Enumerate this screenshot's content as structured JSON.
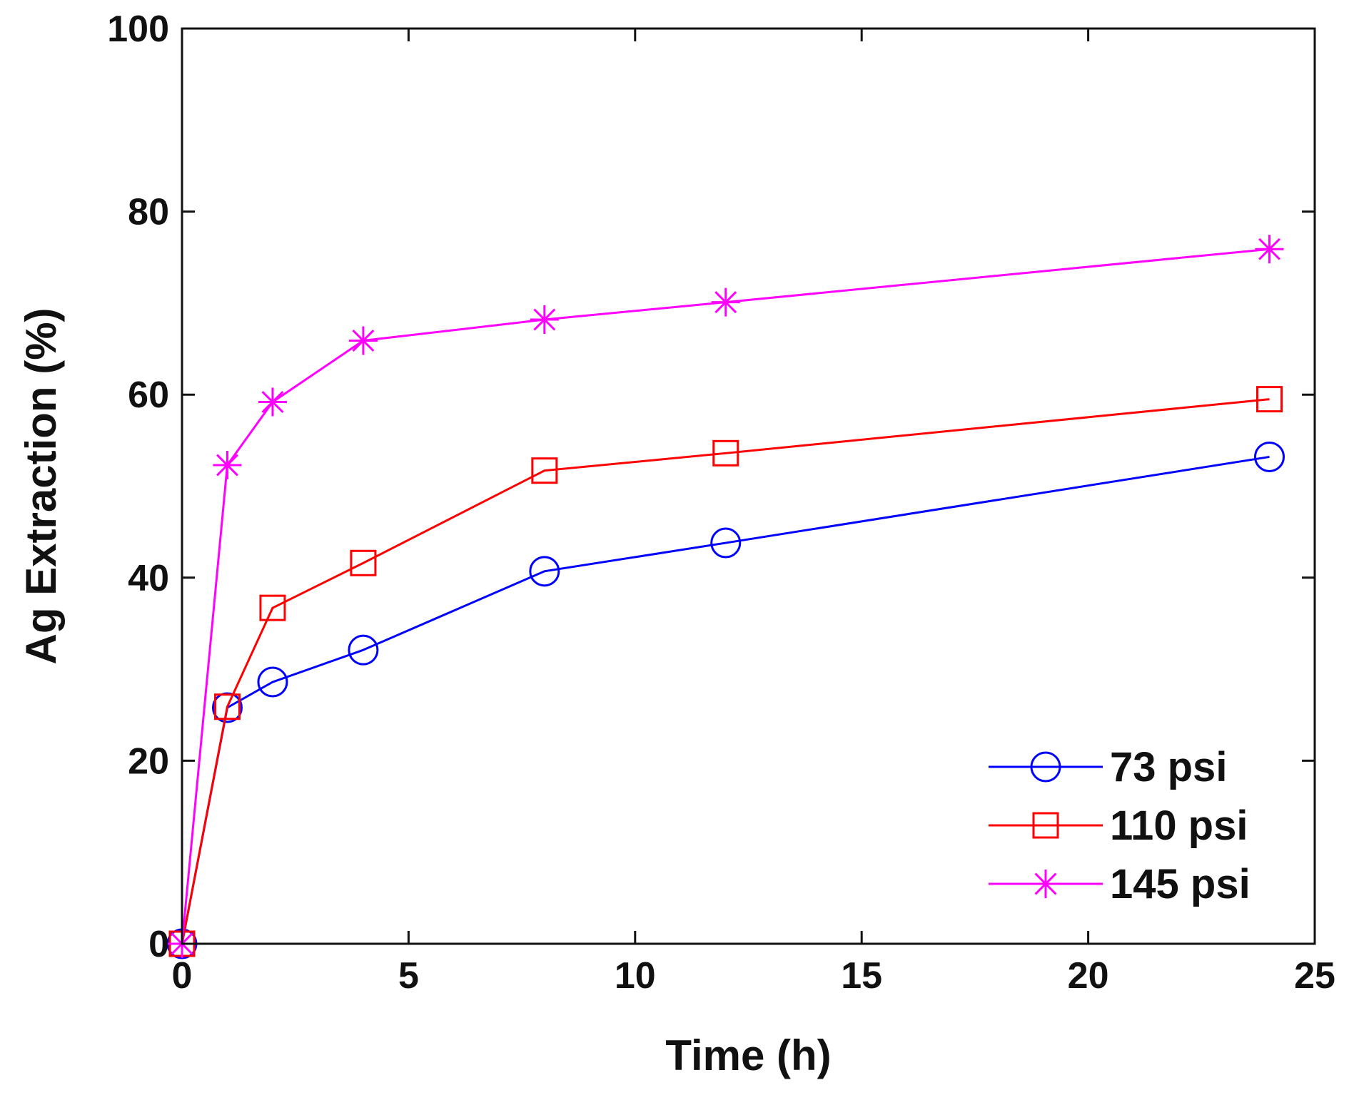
{
  "chart_data": {
    "type": "line",
    "title": "",
    "xlabel": "Time (h)",
    "ylabel": "Ag Extraction (%)",
    "xlim": [
      0,
      25
    ],
    "ylim": [
      0,
      100
    ],
    "xticks": [
      0,
      5,
      10,
      15,
      20,
      25
    ],
    "yticks": [
      0,
      20,
      40,
      60,
      80,
      100
    ],
    "grid": false,
    "legend_position": "bottom-right",
    "series": [
      {
        "name": "73 psi",
        "color": "#0000ff",
        "marker": "circle",
        "x": [
          0,
          1,
          2,
          4,
          8,
          12,
          24
        ],
        "y": [
          0,
          25.8,
          28.6,
          32.1,
          40.7,
          43.8,
          53.2
        ]
      },
      {
        "name": "110 psi",
        "color": "#ff0000",
        "marker": "square",
        "x": [
          0,
          1,
          2,
          4,
          8,
          12,
          24
        ],
        "y": [
          0,
          25.9,
          36.7,
          41.6,
          51.7,
          53.6,
          59.5
        ]
      },
      {
        "name": "145 psi",
        "color": "#ff00ff",
        "marker": "asterisk",
        "x": [
          0,
          1,
          2,
          4,
          8,
          12,
          24
        ],
        "y": [
          0,
          52.3,
          59.2,
          65.9,
          68.2,
          70.1,
          75.9
        ]
      }
    ]
  }
}
